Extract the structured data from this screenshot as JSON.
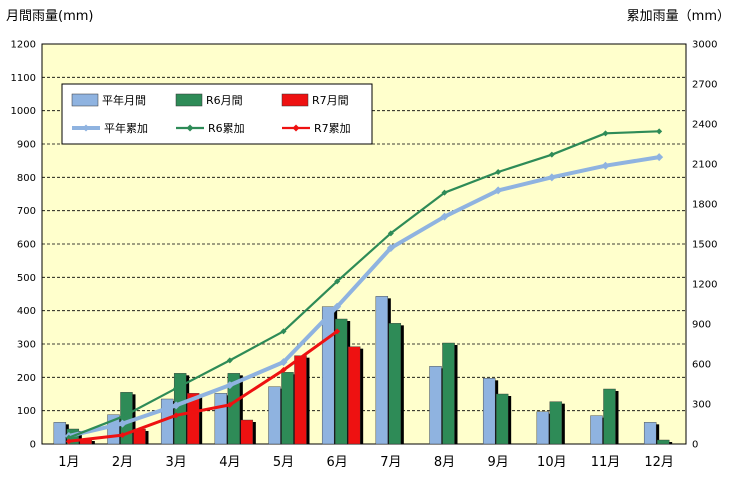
{
  "chart_data": {
    "type": "bar",
    "categories": [
      "1月",
      "2月",
      "3月",
      "4月",
      "5月",
      "6月",
      "7月",
      "8月",
      "9月",
      "10月",
      "11月",
      "12月"
    ],
    "ylabel_left": "月間雨量(mm)",
    "ylabel_right": "累加雨量（mm）",
    "ylim_left": [
      0,
      1200
    ],
    "ylim_right": [
      0,
      3000
    ],
    "yticks_left": [
      "0",
      "100",
      "200",
      "300",
      "400",
      "500",
      "600",
      "700",
      "800",
      "900",
      "1000",
      "1100",
      "1200"
    ],
    "yticks_right": [
      "0",
      "300",
      "600",
      "900",
      "1200",
      "1500",
      "1800",
      "2100",
      "2400",
      "2700",
      "3000"
    ],
    "grid": true,
    "legend_position": "top-left",
    "bar_series": [
      {
        "name": "平年月間",
        "color": "#8fb3e0",
        "values": [
          65,
          88,
          135,
          152,
          172,
          412,
          443,
          233,
          197,
          97,
          85,
          65
        ]
      },
      {
        "name": "R6月間",
        "color": "#2e8b57",
        "values": [
          45,
          155,
          212,
          212,
          215,
          375,
          362,
          303,
          150,
          127,
          165,
          12
        ]
      },
      {
        "name": "R7月間",
        "color": "#ee1111",
        "values": [
          15,
          45,
          152,
          72,
          265,
          292
        ]
      }
    ],
    "line_series": [
      {
        "name": "平年累加",
        "axis": "right",
        "color": "#8fb3e0",
        "values": [
          60,
          153,
          290,
          442,
          614,
          1030,
          1470,
          1705,
          1902,
          2000,
          2087,
          2152
        ]
      },
      {
        "name": "R6累加",
        "axis": "right",
        "color": "#2e8b57",
        "values": [
          47,
          205,
          418,
          627,
          845,
          1220,
          1580,
          1885,
          2040,
          2170,
          2330,
          2345
        ]
      },
      {
        "name": "R7累加",
        "axis": "right",
        "color": "#ee1111",
        "values": [
          20,
          67,
          215,
          293,
          555,
          845
        ]
      }
    ]
  }
}
